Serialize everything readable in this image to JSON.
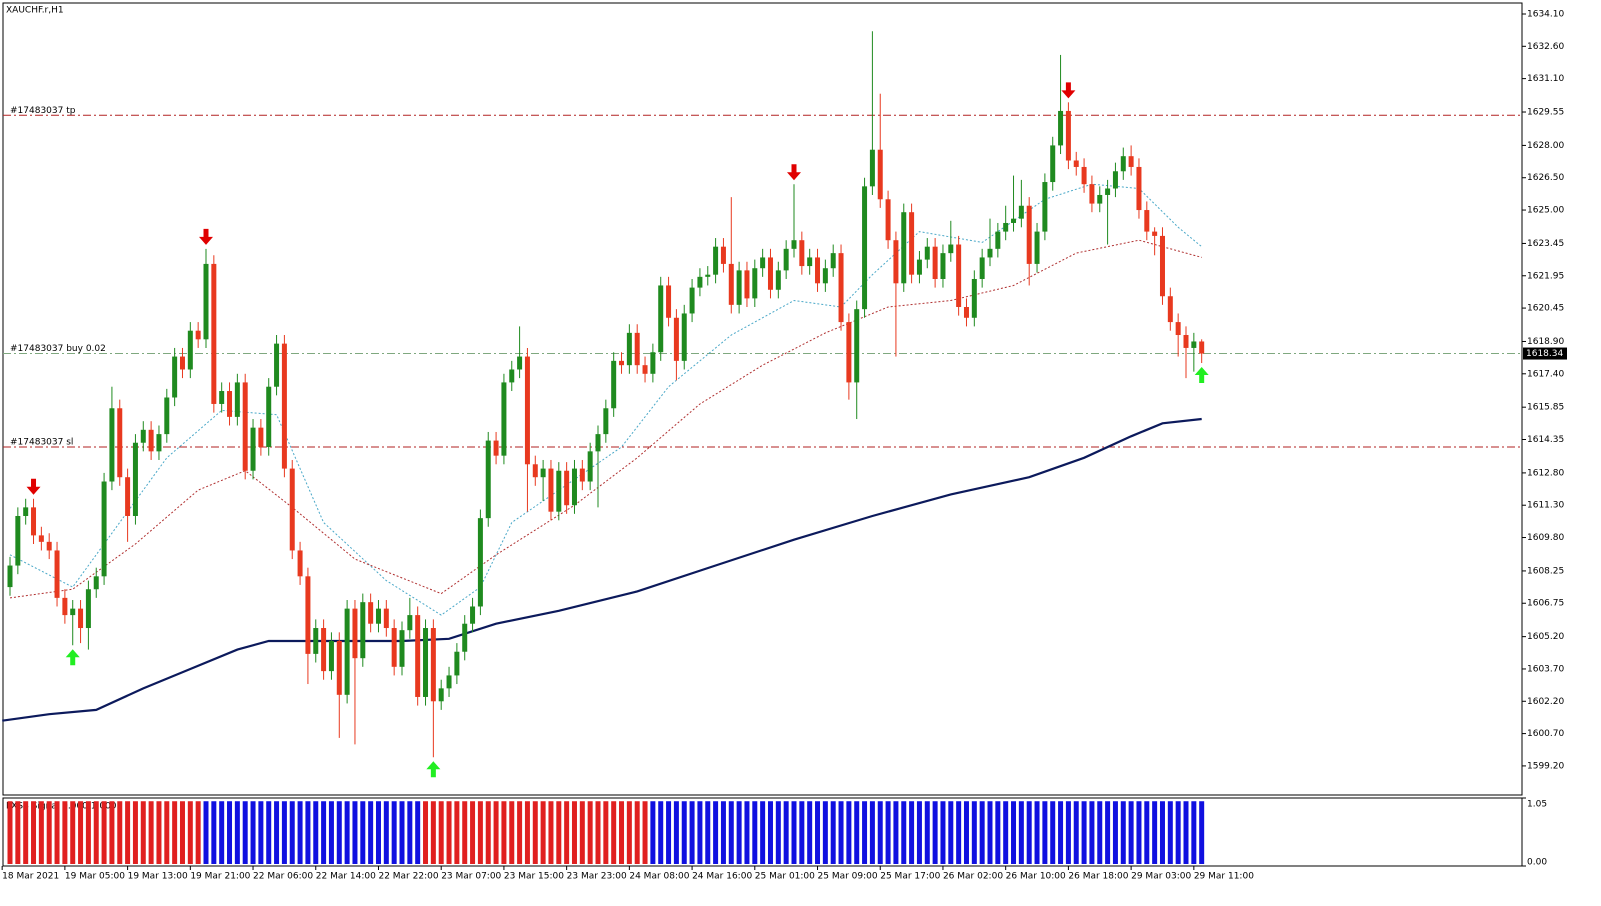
{
  "chart_data": {
    "type": "candlestick",
    "title": "XAUCHF.r,H1",
    "ylim": [
      1597.85,
      1634.61
    ],
    "yticks": [
      {
        "value": 1634.1,
        "label": "1634.10"
      },
      {
        "value": 1632.6,
        "label": "1632.60"
      },
      {
        "value": 1631.1,
        "label": "1631.10"
      },
      {
        "value": 1629.55,
        "label": "1629.55"
      },
      {
        "value": 1628.0,
        "label": "1628.00"
      },
      {
        "value": 1626.5,
        "label": "1626.50"
      },
      {
        "value": 1625.0,
        "label": "1625.00"
      },
      {
        "value": 1623.45,
        "label": "1623.45"
      },
      {
        "value": 1621.95,
        "label": "1621.95"
      },
      {
        "value": 1620.45,
        "label": "1620.45"
      },
      {
        "value": 1618.9,
        "label": "1618.90"
      },
      {
        "value": 1617.4,
        "label": "1617.40"
      },
      {
        "value": 1615.85,
        "label": "1615.85"
      },
      {
        "value": 1614.35,
        "label": "1614.35"
      },
      {
        "value": 1612.8,
        "label": "1612.80"
      },
      {
        "value": 1611.3,
        "label": "1611.30"
      },
      {
        "value": 1609.8,
        "label": "1609.80"
      },
      {
        "value": 1608.25,
        "label": "1608.25"
      },
      {
        "value": 1606.75,
        "label": "1606.75"
      },
      {
        "value": 1605.2,
        "label": "1605.20"
      },
      {
        "value": 1603.7,
        "label": "1603.70"
      },
      {
        "value": 1602.2,
        "label": "1602.20"
      },
      {
        "value": 1600.7,
        "label": "1600.70"
      },
      {
        "value": 1599.2,
        "label": "1599.20"
      }
    ],
    "xticks": [
      {
        "value": -1,
        "label": "18 Mar 2021"
      },
      {
        "value": 7,
        "label": "19 Mar 05:00"
      },
      {
        "value": 15,
        "label": "19 Mar 13:00"
      },
      {
        "value": 23,
        "label": "19 Mar 21:00"
      },
      {
        "value": 31,
        "label": "22 Mar 06:00"
      },
      {
        "value": 39,
        "label": "22 Mar 14:00"
      },
      {
        "value": 47,
        "label": "22 Mar 22:00"
      },
      {
        "value": 55,
        "label": "23 Mar 07:00"
      },
      {
        "value": 63,
        "label": "23 Mar 15:00"
      },
      {
        "value": 71,
        "label": "23 Mar 23:00"
      },
      {
        "value": 79,
        "label": "24 Mar 08:00"
      },
      {
        "value": 87,
        "label": "24 Mar 16:00"
      },
      {
        "value": 95,
        "label": "25 Mar 01:00"
      },
      {
        "value": 103,
        "label": "25 Mar 09:00"
      },
      {
        "value": 111,
        "label": "25 Mar 17:00"
      },
      {
        "value": 119,
        "label": "26 Mar 02:00"
      },
      {
        "value": 127,
        "label": "26 Mar 10:00"
      },
      {
        "value": 135,
        "label": "26 Mar 18:00"
      },
      {
        "value": 143,
        "label": "29 Mar 03:00"
      },
      {
        "value": 151,
        "label": "29 Mar 11:00"
      }
    ],
    "up_color": "#1f8a1f",
    "down_color": "#e8391f",
    "open": [
      1607.5,
      1608.5,
      1610.8,
      1611.2,
      1609.9,
      1609.6,
      1609.2,
      1607.0,
      1606.2,
      1606.5,
      1605.6,
      1607.4,
      1608.0,
      1612.4,
      1615.8,
      1612.6,
      1610.8,
      1614.2,
      1614.8,
      1613.8,
      1614.6,
      1616.3,
      1618.2,
      1617.6,
      1619.4,
      1619.0,
      1622.5,
      1616.0,
      1616.6,
      1615.4,
      1617.0,
      1612.9,
      1614.9,
      1614.0,
      1616.8,
      1618.8,
      1613.0,
      1609.2,
      1608.0,
      1604.4,
      1605.6,
      1603.6,
      1605.0,
      1602.5,
      1606.5,
      1604.2,
      1606.8,
      1605.8,
      1606.5,
      1605.6,
      1603.8,
      1605.5,
      1606.2,
      1602.4,
      1605.6,
      1602.2,
      1602.8,
      1603.4,
      1604.5,
      1605.8,
      1606.6,
      1610.7,
      1614.3,
      1613.6,
      1617.0,
      1617.6,
      1618.2,
      1613.2,
      1612.6,
      1613.0,
      1611.0,
      1612.9,
      1611.3,
      1613.0,
      1612.4,
      1613.8,
      1614.6,
      1615.8,
      1618.0,
      1617.8,
      1619.3,
      1617.8,
      1617.4,
      1618.4,
      1621.5,
      1620.0,
      1618.0,
      1620.2,
      1621.4,
      1621.9,
      1622.0,
      1623.3,
      1622.5,
      1620.6,
      1622.2,
      1620.9,
      1622.3,
      1622.8,
      1621.3,
      1622.2,
      1623.2,
      1623.6,
      1622.4,
      1622.8,
      1621.6,
      1622.3,
      1623.0,
      1619.8,
      1617.0,
      1620.4,
      1626.1,
      1627.8,
      1625.5,
      1623.6,
      1621.6,
      1624.9,
      1622.0,
      1622.7,
      1623.3,
      1621.8,
      1623.0,
      1623.4,
      1620.5,
      1620.0,
      1621.8,
      1622.8,
      1623.2,
      1624.0,
      1624.4,
      1624.6,
      1625.2,
      1622.5,
      1624.0,
      1626.3,
      1628.0,
      1629.6,
      1627.3,
      1627.0,
      1626.2,
      1625.3,
      1625.7,
      1626.0,
      1626.8,
      1627.5,
      1627.0,
      1625.0,
      1624.0,
      1623.8,
      1621.0,
      1619.8,
      1619.2,
      1618.6,
      1618.9
    ],
    "high": [
      1608.9,
      1611.2,
      1611.6,
      1611.6,
      1610.3,
      1610.0,
      1609.6,
      1607.4,
      1606.9,
      1606.9,
      1607.8,
      1608.4,
      1612.8,
      1616.8,
      1616.2,
      1613.0,
      1614.6,
      1615.2,
      1615.2,
      1615.0,
      1616.7,
      1618.6,
      1618.6,
      1619.8,
      1619.8,
      1623.2,
      1622.9,
      1617.0,
      1617.0,
      1617.4,
      1617.4,
      1615.3,
      1615.3,
      1617.2,
      1619.2,
      1619.2,
      1613.4,
      1609.6,
      1608.4,
      1606.0,
      1606.0,
      1605.4,
      1605.4,
      1606.9,
      1606.9,
      1607.2,
      1607.2,
      1606.9,
      1606.9,
      1606.0,
      1605.9,
      1607.0,
      1606.6,
      1606.0,
      1606.0,
      1603.2,
      1603.8,
      1604.9,
      1606.2,
      1607.0,
      1611.1,
      1614.7,
      1614.7,
      1617.4,
      1618.0,
      1619.6,
      1618.6,
      1613.6,
      1613.4,
      1613.4,
      1613.3,
      1613.3,
      1613.4,
      1613.4,
      1614.2,
      1615.0,
      1616.2,
      1618.4,
      1618.4,
      1619.7,
      1619.7,
      1618.2,
      1618.8,
      1621.9,
      1621.9,
      1620.4,
      1620.6,
      1621.8,
      1622.3,
      1622.4,
      1623.7,
      1623.7,
      1625.6,
      1622.6,
      1622.6,
      1622.7,
      1623.2,
      1623.2,
      1622.6,
      1623.6,
      1626.2,
      1624.0,
      1623.2,
      1623.2,
      1622.7,
      1623.4,
      1623.4,
      1620.2,
      1620.8,
      1626.5,
      1633.3,
      1630.4,
      1625.9,
      1624.0,
      1625.3,
      1625.3,
      1623.1,
      1623.7,
      1623.7,
      1623.4,
      1624.5,
      1623.8,
      1620.9,
      1622.2,
      1623.2,
      1624.6,
      1624.4,
      1625.2,
      1626.6,
      1626.4,
      1625.6,
      1624.4,
      1626.7,
      1628.4,
      1632.2,
      1630.0,
      1627.7,
      1627.4,
      1626.6,
      1626.1,
      1626.4,
      1627.2,
      1627.9,
      1628.0,
      1627.4,
      1625.4,
      1624.2,
      1624.2,
      1621.4,
      1620.2,
      1619.6,
      1619.3,
      1619.0
    ],
    "low": [
      1607.1,
      1608.1,
      1610.4,
      1609.5,
      1609.2,
      1608.8,
      1606.6,
      1605.8,
      1604.8,
      1604.9,
      1604.6,
      1607.0,
      1607.6,
      1612.0,
      1612.2,
      1609.6,
      1610.4,
      1613.8,
      1613.4,
      1613.4,
      1614.2,
      1615.9,
      1617.2,
      1617.2,
      1618.6,
      1618.6,
      1615.6,
      1615.6,
      1615.0,
      1615.0,
      1612.5,
      1612.5,
      1613.6,
      1613.6,
      1616.4,
      1612.6,
      1608.8,
      1607.6,
      1603.0,
      1604.0,
      1603.2,
      1603.2,
      1600.5,
      1602.1,
      1600.2,
      1603.8,
      1605.4,
      1605.4,
      1605.2,
      1603.4,
      1603.4,
      1605.1,
      1602.0,
      1602.0,
      1599.6,
      1601.8,
      1602.4,
      1603.0,
      1604.1,
      1605.4,
      1606.2,
      1610.3,
      1613.2,
      1613.2,
      1616.6,
      1617.2,
      1611.0,
      1612.2,
      1611.5,
      1610.6,
      1610.6,
      1610.9,
      1610.9,
      1612.0,
      1612.0,
      1611.2,
      1614.2,
      1615.4,
      1617.4,
      1617.4,
      1617.4,
      1617.0,
      1617.0,
      1618.0,
      1619.6,
      1617.1,
      1617.6,
      1619.8,
      1621.0,
      1621.5,
      1621.6,
      1622.1,
      1620.2,
      1620.2,
      1620.5,
      1620.5,
      1621.9,
      1620.9,
      1620.9,
      1621.8,
      1622.8,
      1622.0,
      1622.0,
      1621.2,
      1621.2,
      1621.9,
      1619.4,
      1616.2,
      1615.3,
      1620.0,
      1625.7,
      1625.1,
      1623.2,
      1618.2,
      1621.2,
      1621.6,
      1621.6,
      1622.3,
      1621.4,
      1621.4,
      1622.6,
      1620.1,
      1619.6,
      1619.6,
      1621.4,
      1622.4,
      1622.8,
      1623.6,
      1624.0,
      1624.2,
      1621.5,
      1622.1,
      1623.6,
      1625.9,
      1627.6,
      1626.9,
      1626.6,
      1625.8,
      1624.9,
      1624.9,
      1623.4,
      1625.6,
      1626.4,
      1626.6,
      1624.6,
      1623.6,
      1622.9,
      1620.6,
      1619.4,
      1618.2,
      1617.2,
      1617.5,
      1617.9
    ],
    "close": [
      1608.5,
      1610.8,
      1611.2,
      1609.9,
      1609.6,
      1609.2,
      1607.0,
      1606.2,
      1606.5,
      1605.6,
      1607.4,
      1608.0,
      1612.4,
      1615.8,
      1612.6,
      1610.8,
      1614.2,
      1614.8,
      1613.8,
      1614.6,
      1616.3,
      1618.2,
      1617.6,
      1619.4,
      1619.0,
      1622.5,
      1616.0,
      1616.6,
      1615.4,
      1617.0,
      1612.9,
      1614.9,
      1614.0,
      1616.8,
      1618.8,
      1613.0,
      1609.2,
      1608.0,
      1604.4,
      1605.6,
      1603.6,
      1605.0,
      1602.5,
      1606.5,
      1604.2,
      1606.8,
      1605.8,
      1606.5,
      1605.6,
      1603.8,
      1605.5,
      1606.2,
      1602.4,
      1605.6,
      1602.2,
      1602.8,
      1603.4,
      1604.5,
      1605.8,
      1606.6,
      1610.7,
      1614.3,
      1613.6,
      1617.0,
      1617.6,
      1618.2,
      1613.2,
      1612.6,
      1613.0,
      1611.0,
      1612.9,
      1611.3,
      1613.0,
      1612.4,
      1613.8,
      1614.6,
      1615.8,
      1618.0,
      1617.8,
      1619.3,
      1617.8,
      1617.4,
      1618.4,
      1621.5,
      1620.0,
      1618.0,
      1620.2,
      1621.4,
      1621.9,
      1622.0,
      1623.3,
      1622.5,
      1620.6,
      1622.2,
      1620.9,
      1622.3,
      1622.8,
      1621.3,
      1622.2,
      1623.2,
      1623.6,
      1622.4,
      1622.8,
      1621.6,
      1622.3,
      1623.0,
      1619.8,
      1617.0,
      1620.4,
      1626.1,
      1627.8,
      1625.5,
      1623.6,
      1621.6,
      1624.9,
      1622.0,
      1622.7,
      1623.3,
      1621.8,
      1623.0,
      1623.4,
      1620.5,
      1620.0,
      1621.8,
      1622.8,
      1623.2,
      1624.0,
      1624.4,
      1624.6,
      1625.2,
      1622.5,
      1624.0,
      1626.3,
      1628.0,
      1629.6,
      1627.3,
      1627.0,
      1626.2,
      1625.3,
      1625.7,
      1626.0,
      1626.8,
      1627.5,
      1627.0,
      1625.0,
      1624.0,
      1623.8,
      1621.0,
      1619.8,
      1619.2,
      1618.6,
      1618.9,
      1618.34
    ],
    "lines": [
      {
        "color": "#4aa8c8",
        "dash": "2,2",
        "width": 1,
        "x": [
          0,
          8,
          13,
          20,
          27,
          34,
          40,
          48,
          55,
          60,
          64,
          72,
          78,
          84,
          92,
          100,
          106,
          110,
          116,
          124,
          132,
          138,
          144,
          149,
          152
        ],
        "values": [
          1609,
          1607.5,
          1610,
          1613.5,
          1615.7,
          1615.5,
          1610.5,
          1607.8,
          1606.2,
          1607.5,
          1610.5,
          1612.5,
          1614,
          1616.8,
          1619.2,
          1620.8,
          1620.5,
          1622,
          1624,
          1623.5,
          1625.5,
          1626.2,
          1626,
          1624.2,
          1623.3
        ]
      },
      {
        "color": "#b03030",
        "dash": "2,2",
        "width": 1,
        "x": [
          0,
          8,
          16,
          24,
          30,
          36,
          44,
          55,
          62,
          72,
          80,
          88,
          96,
          104,
          112,
          120,
          128,
          136,
          144,
          152
        ],
        "values": [
          1607,
          1607.4,
          1609.5,
          1612,
          1612.9,
          1611.2,
          1608.8,
          1607.2,
          1609,
          1611.3,
          1613.5,
          1616,
          1617.8,
          1619.3,
          1620.5,
          1620.8,
          1621.5,
          1623,
          1623.6,
          1622.8
        ]
      },
      {
        "color": "#0c1a5c",
        "dash": "",
        "width": 2.2,
        "x": [
          -1,
          5,
          11,
          17,
          23,
          29,
          33,
          40,
          50,
          56,
          62,
          70,
          80,
          90,
          100,
          110,
          120,
          130,
          137,
          143,
          147,
          152
        ],
        "values": [
          1601.3,
          1601.6,
          1601.8,
          1602.8,
          1603.7,
          1604.6,
          1605,
          1605,
          1605,
          1605.1,
          1605.8,
          1606.4,
          1607.3,
          1608.5,
          1609.7,
          1610.8,
          1611.8,
          1612.6,
          1613.5,
          1614.5,
          1615.1,
          1615.3
        ]
      }
    ],
    "orders": [
      {
        "label": "#17483037 tp",
        "price": 1629.4,
        "color": "#b22222"
      },
      {
        "label": "#17483037 buy 0.02",
        "price": 1618.34,
        "color": "#7fa87f"
      },
      {
        "label": "#17483037 sl",
        "price": 1614.0,
        "color": "#b22222"
      }
    ],
    "last_price": 1618.34,
    "signals": {
      "sell": [
        3,
        25,
        100,
        135
      ],
      "buy": [
        8,
        54,
        152
      ],
      "sell_color": "#e00000",
      "buy_color": "#22ee22"
    },
    "indicator": {
      "title": "FXSS Signal 0.000 1.000",
      "ylim": [
        0,
        1.05
      ],
      "yticks": [
        {
          "value": 1.05,
          "label": "1.05"
        },
        {
          "value": 0,
          "label": "0.00"
        }
      ],
      "segments": [
        {
          "from": 0,
          "to": 24,
          "value": 1,
          "color": "#e02020"
        },
        {
          "from": 25,
          "to": 52,
          "value": 1,
          "color": "#1010e0"
        },
        {
          "from": 53,
          "to": 81,
          "value": 1,
          "color": "#e02020"
        },
        {
          "from": 82,
          "to": 152,
          "value": 1,
          "color": "#1010e0"
        }
      ]
    }
  }
}
